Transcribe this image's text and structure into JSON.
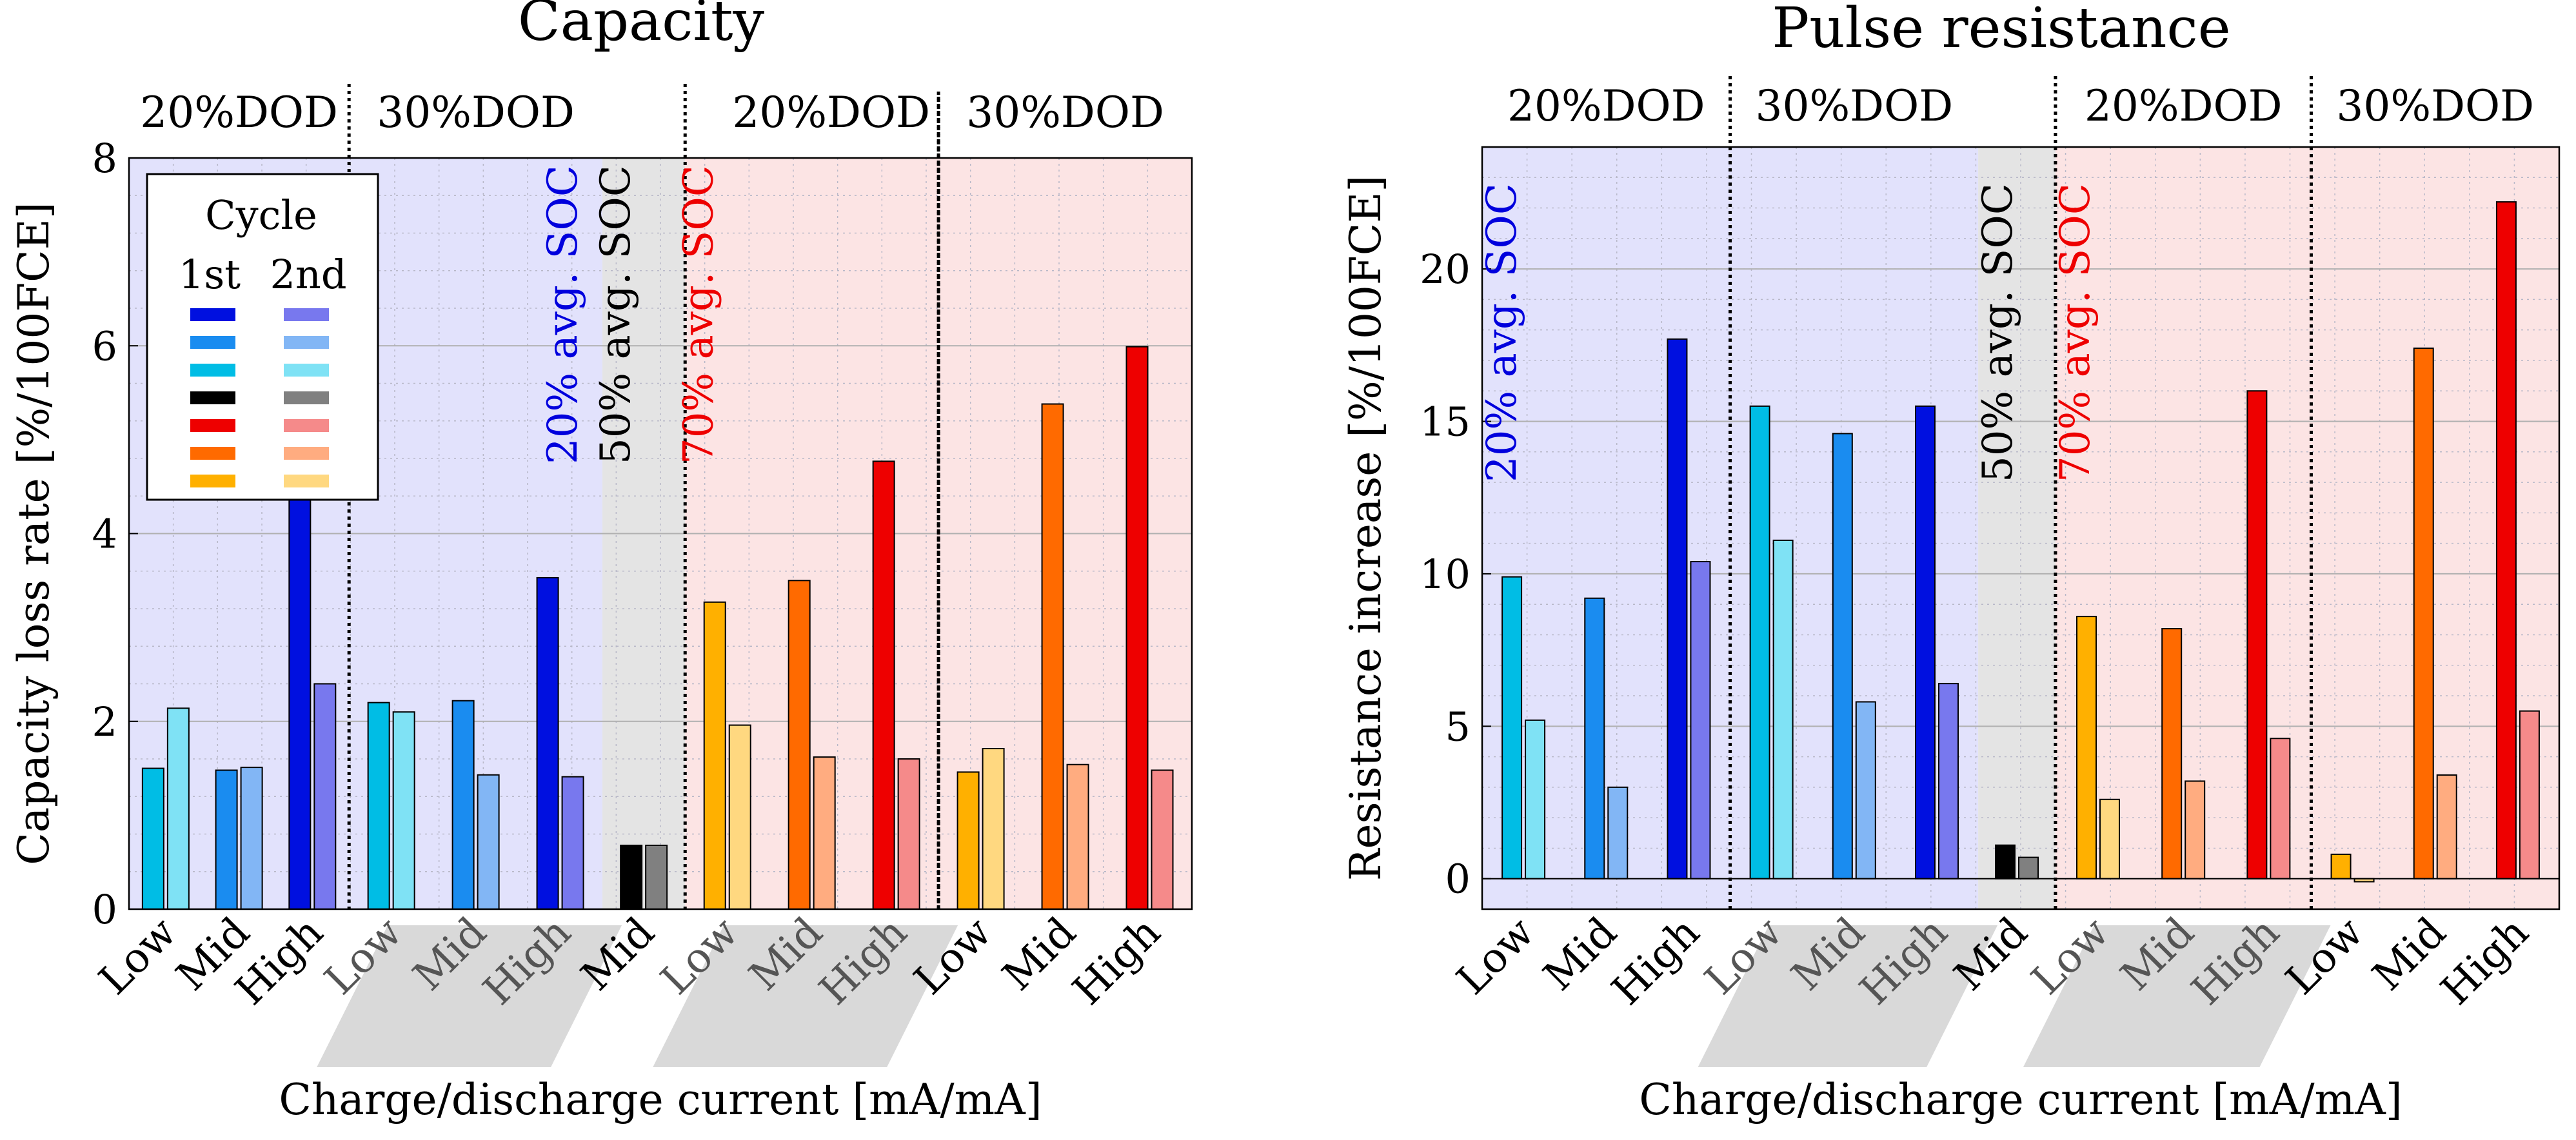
{
  "figure": {
    "xlabel": "Charge/discharge current [mA/mA]"
  },
  "legend": {
    "title": "Cycle",
    "col1": "1st",
    "col2": "2nd"
  },
  "groups": [
    {
      "soc": 20,
      "dod": "20%DOD",
      "cats": [
        "Low",
        "Mid",
        "High"
      ],
      "shaded": false
    },
    {
      "soc": 20,
      "dod": "30%DOD",
      "cats": [
        "Low",
        "Mid",
        "High"
      ],
      "shaded": true
    },
    {
      "soc": 50,
      "dod": "",
      "cats": [
        "Mid"
      ],
      "shaded": false
    },
    {
      "soc": 70,
      "dod": "20%DOD",
      "cats": [
        "Low",
        "Mid",
        "High"
      ],
      "shaded": true
    },
    {
      "soc": 70,
      "dod": "30%DOD",
      "cats": [
        "Low",
        "Mid",
        "High"
      ],
      "shaded": false
    }
  ],
  "soc_labels": [
    {
      "text": "20% avg. SOC",
      "color": "#0000dd"
    },
    {
      "text": "50% avg. SOC",
      "color": "#000000"
    },
    {
      "text": "70% avg. SOC",
      "color": "#ee0000"
    }
  ],
  "colors": {
    "first": [
      "#00bde5",
      "#1a8cf0",
      "#0010e0",
      "#00bde5",
      "#1a8cf0",
      "#0010e0",
      "#000000",
      "#ffb000",
      "#ff6a00",
      "#ee0000",
      "#ffb000",
      "#ff6a00",
      "#ee0000"
    ],
    "second": [
      "#7fe2f5",
      "#82b6f5",
      "#7878ee",
      "#7fe2f5",
      "#82b6f5",
      "#7878ee",
      "#808080",
      "#ffd880",
      "#ffac80",
      "#f58a8a",
      "#ffd880",
      "#ffac80",
      "#f58a8a"
    ],
    "bg_soc20": "#e2e2fc",
    "bg_soc50": "#e4e4e4",
    "bg_soc70": "#fce4e4",
    "legend_first": [
      "#0010e0",
      "#1a8cf0",
      "#00bde5",
      "#000000",
      "#ee0000",
      "#ff6a00",
      "#ffb000"
    ],
    "legend_second": [
      "#7878ee",
      "#82b6f5",
      "#7fe2f5",
      "#808080",
      "#f58a8a",
      "#ffac80",
      "#ffd880"
    ]
  },
  "chart_data": [
    {
      "type": "bar",
      "title": "Capacity",
      "ylabel": "Capacity loss rate [%/100FCE]",
      "xlabel": "Charge/discharge current [mA/mA]",
      "ylim": [
        0,
        8
      ],
      "yticks": [
        0,
        2,
        4,
        6,
        8
      ],
      "grid": true,
      "legend_position": "top-left",
      "categories": [
        "Low",
        "Mid",
        "High",
        "Low",
        "Mid",
        "High",
        "Mid",
        "Low",
        "Mid",
        "High",
        "Low",
        "Mid",
        "High"
      ],
      "series": [
        {
          "name": "1st",
          "values": [
            1.5,
            1.48,
            4.4,
            2.2,
            2.22,
            3.53,
            0.68,
            3.27,
            3.5,
            4.77,
            1.46,
            5.38,
            5.99
          ]
        },
        {
          "name": "2nd",
          "values": [
            2.14,
            1.51,
            2.4,
            2.1,
            1.43,
            1.41,
            0.68,
            1.96,
            1.62,
            1.6,
            1.71,
            1.54,
            1.48
          ]
        }
      ]
    },
    {
      "type": "bar",
      "title": "Pulse resistance",
      "ylabel": "Resistance increase [%/100FCE]",
      "xlabel": "Charge/discharge current [mA/mA]",
      "ylim": [
        -1,
        24
      ],
      "yticks": [
        0,
        5,
        10,
        15,
        20
      ],
      "grid": true,
      "categories": [
        "Low",
        "Mid",
        "High",
        "Low",
        "Mid",
        "High",
        "Mid",
        "Low",
        "Mid",
        "High",
        "Low",
        "Mid",
        "High"
      ],
      "series": [
        {
          "name": "1st",
          "values": [
            9.9,
            9.2,
            17.7,
            15.5,
            14.6,
            15.5,
            1.1,
            8.6,
            8.2,
            16.0,
            0.8,
            17.4,
            22.2
          ]
        },
        {
          "name": "2nd",
          "values": [
            5.2,
            3.0,
            10.4,
            11.1,
            5.8,
            6.4,
            0.7,
            2.6,
            3.2,
            4.6,
            -0.1,
            3.4,
            5.5
          ]
        }
      ]
    }
  ]
}
